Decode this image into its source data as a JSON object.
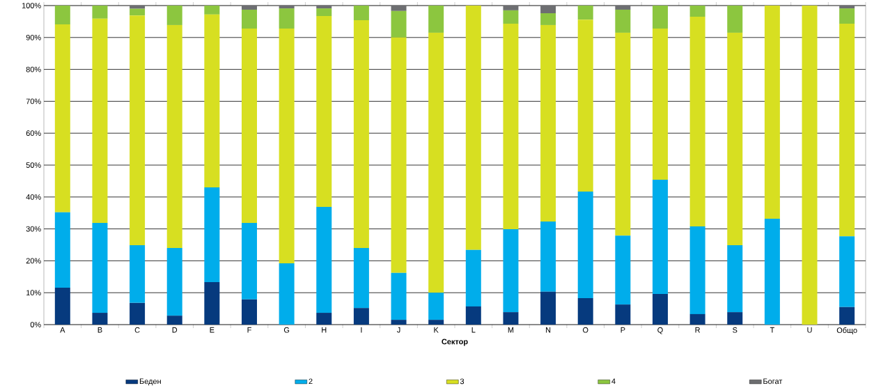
{
  "chart_data": {
    "type": "bar",
    "stacked": true,
    "xlabel": "Сектор",
    "categories": [
      "A",
      "B",
      "C",
      "D",
      "E",
      "F",
      "G",
      "H",
      "I",
      "J",
      "K",
      "L",
      "M",
      "N",
      "O",
      "P",
      "Q",
      "R",
      "S",
      "T",
      "U",
      "Общо"
    ],
    "series": [
      {
        "name": "Беден",
        "color": "#063a7e",
        "values": [
          11.6,
          3.7,
          6.8,
          2.8,
          13.3,
          7.9,
          0,
          3.7,
          5.2,
          1.5,
          1.5,
          5.7,
          3.9,
          10.3,
          8.3,
          6.3,
          9.6,
          3.3,
          3.9,
          0,
          0,
          5.5
        ]
      },
      {
        "name": "2",
        "color": "#00adeb",
        "values": [
          23.6,
          28.2,
          18.1,
          21.2,
          29.7,
          24.0,
          19.2,
          33.2,
          18.8,
          14.7,
          8.5,
          17.7,
          26.0,
          22.0,
          33.4,
          21.6,
          35.8,
          27.5,
          21.0,
          33.2,
          0,
          22.2
        ]
      },
      {
        "name": "3",
        "color": "#d7df21",
        "values": [
          58.9,
          64.0,
          72.0,
          69.9,
          54.2,
          60.9,
          73.6,
          59.8,
          71.4,
          73.8,
          81.5,
          76.6,
          64.4,
          61.6,
          53.9,
          63.6,
          47.4,
          65.7,
          66.6,
          66.8,
          100,
          66.6
        ]
      },
      {
        "name": "4",
        "color": "#8cc63f",
        "values": [
          5.9,
          4.1,
          2.1,
          6.1,
          2.8,
          5.9,
          6.3,
          2.4,
          4.6,
          8.3,
          8.5,
          0,
          4.2,
          3.7,
          4.4,
          7.2,
          7.2,
          3.5,
          8.5,
          0,
          0,
          4.8
        ]
      },
      {
        "name": "Богат",
        "color": "#6d6e71",
        "values": [
          0,
          0,
          1.0,
          0,
          0,
          1.3,
          0.9,
          0.9,
          0,
          1.7,
          0,
          0,
          1.5,
          2.4,
          0,
          1.3,
          0,
          0,
          0,
          0,
          0,
          0.9
        ]
      }
    ],
    "ylim": [
      0,
      100
    ],
    "yticks": [
      {
        "value": 0,
        "label": "0%"
      },
      {
        "value": 10,
        "label": "10%"
      },
      {
        "value": 20,
        "label": "20%"
      },
      {
        "value": 30,
        "label": "30%"
      },
      {
        "value": 40,
        "label": "40%"
      },
      {
        "value": 50,
        "label": "50%"
      },
      {
        "value": 60,
        "label": "60%"
      },
      {
        "value": 70,
        "label": "70%"
      },
      {
        "value": 80,
        "label": "80%"
      },
      {
        "value": 90,
        "label": "90%"
      },
      {
        "value": 100,
        "label": "100%"
      }
    ],
    "grid": "y",
    "legend": "bottom"
  }
}
